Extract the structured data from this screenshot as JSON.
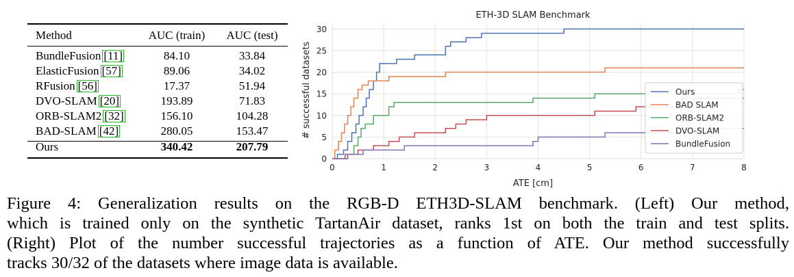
{
  "table": {
    "headers": [
      "Method",
      "AUC (train)",
      "AUC (test)"
    ],
    "rows": [
      {
        "method": "BundleFusion",
        "ref": "[11]",
        "train": "84.10",
        "test": "33.84"
      },
      {
        "method": "ElasticFusion",
        "ref": "[57]",
        "train": "89.06",
        "test": "34.02"
      },
      {
        "method": "RFusion",
        "ref": "[56]",
        "train": "17.37",
        "test": "51.94"
      },
      {
        "method": "DVO-SLAM",
        "ref": "[20]",
        "train": "193.89",
        "test": "71.83"
      },
      {
        "method": "ORB-SLAM2",
        "ref": "[32]",
        "train": "156.10",
        "test": "104.28"
      },
      {
        "method": "BAD-SLAM",
        "ref": "[42]",
        "train": "280.05",
        "test": "153.47"
      }
    ],
    "ours": {
      "method": "Ours",
      "train": "340.42",
      "test": "207.79"
    }
  },
  "chart_data": {
    "type": "line",
    "style": "step",
    "title": "ETH-3D SLAM Benchmark",
    "xlabel": "ATE [cm]",
    "ylabel": "# successful datasets",
    "xlim": [
      0,
      8
    ],
    "ylim": [
      0,
      31
    ],
    "xticks": [
      0,
      1,
      2,
      3,
      4,
      5,
      6,
      7,
      8
    ],
    "yticks": [
      0,
      5,
      10,
      15,
      20,
      25,
      30
    ],
    "grid": true,
    "legend_position": "center-right",
    "series": [
      {
        "name": "Ours",
        "color": "#4c72b0",
        "x": [
          0,
          0.1,
          0.22,
          0.3,
          0.38,
          0.46,
          0.52,
          0.6,
          0.66,
          0.72,
          0.8,
          0.86,
          0.92,
          1.0,
          1.25,
          1.6,
          2.2,
          2.3,
          2.45,
          2.6,
          2.9,
          3.0,
          4.5,
          8.0
        ],
        "y": [
          0,
          1,
          2,
          4,
          6,
          8,
          10,
          12,
          14,
          16,
          18,
          20,
          22,
          22,
          23,
          24,
          26,
          27,
          27,
          28,
          29,
          29,
          30,
          30
        ]
      },
      {
        "name": "BAD SLAM",
        "color": "#dd8452",
        "x": [
          0,
          0.05,
          0.12,
          0.18,
          0.24,
          0.3,
          0.36,
          0.42,
          0.5,
          0.58,
          0.7,
          1.1,
          1.6,
          2.2,
          5.3,
          8.0
        ],
        "y": [
          0,
          2,
          4,
          6,
          8,
          10,
          12,
          14,
          16,
          17,
          18,
          19,
          19,
          20,
          21,
          21
        ]
      },
      {
        "name": "ORB-SLAM2",
        "color": "#55a868",
        "x": [
          0,
          0.3,
          0.42,
          0.5,
          0.56,
          0.64,
          0.8,
          1.1,
          1.2,
          1.5,
          3.0,
          3.9,
          5.1,
          5.8,
          7.9,
          8.0
        ],
        "y": [
          0,
          1,
          3,
          5,
          7,
          8,
          10,
          12,
          13,
          13,
          13,
          14,
          15,
          15,
          16,
          16
        ]
      },
      {
        "name": "DVO-SLAM",
        "color": "#c44e52",
        "x": [
          0,
          0.25,
          0.5,
          0.8,
          1.1,
          1.3,
          1.6,
          2.2,
          2.4,
          2.6,
          3.0,
          4.8,
          5.1,
          5.9,
          6.2,
          6.8,
          8.0
        ],
        "y": [
          0,
          1,
          2,
          3,
          4,
          5,
          6,
          7,
          8,
          9,
          10,
          10,
          11,
          12,
          12,
          14,
          14
        ]
      },
      {
        "name": "BundleFusion",
        "color": "#8172b3",
        "x": [
          0,
          0.3,
          0.6,
          1.0,
          1.4,
          3.8,
          3.9,
          4.0,
          5.2,
          5.3,
          7.0,
          8.0
        ],
        "y": [
          0,
          1,
          2,
          2,
          3,
          3,
          4,
          5,
          5,
          6,
          7,
          7
        ]
      }
    ]
  },
  "caption": {
    "lines": [
      "Figure 4: Generalization results on the RGB-D ETH3D-SLAM benchmark. (Left) Our method,",
      "which is trained only on the synthetic TartanAir dataset, ranks 1st on both the train and test splits.",
      "(Right) Plot of the number successful trajectories as a function of ATE. Our method successfully",
      "tracks 30/32 of the datasets where image data is available."
    ]
  }
}
